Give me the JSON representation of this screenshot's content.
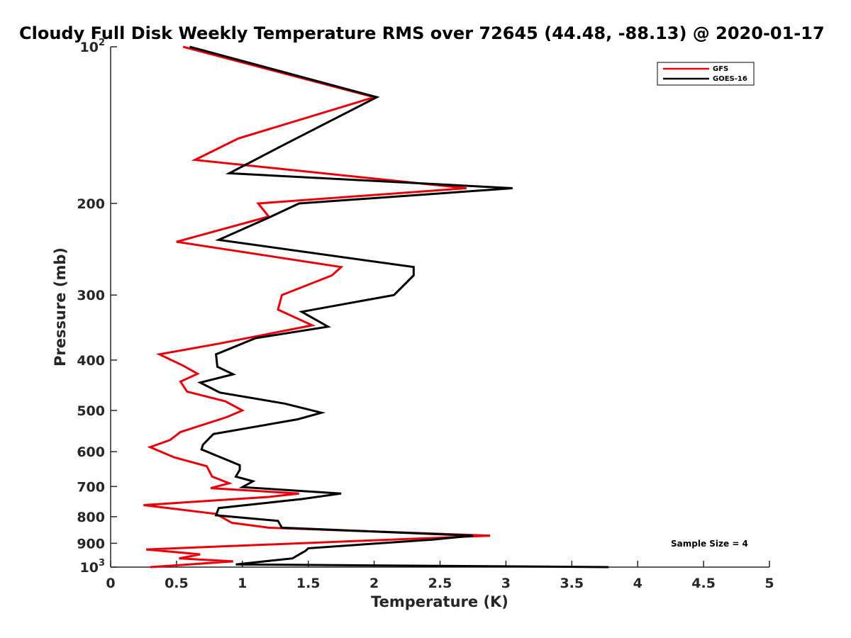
{
  "chart_data": {
    "type": "line",
    "title": "Cloudy Full Disk Weekly Temperature RMS over 72645 (44.48, -88.13) @ 2020-01-17",
    "xlabel": "Temperature (K)",
    "ylabel": "Pressure (mb)",
    "xlim": [
      0,
      5
    ],
    "ylim": [
      1000,
      100
    ],
    "y_scale": "log",
    "x_ticks": [
      "0",
      "0.5",
      "1",
      "1.5",
      "2",
      "2.5",
      "3",
      "3.5",
      "4",
      "4.5",
      "5"
    ],
    "y_ticks": [
      {
        "value": 100,
        "base": "10",
        "exp": "2"
      },
      {
        "value": 200,
        "label": "200"
      },
      {
        "value": 300,
        "label": "300"
      },
      {
        "value": 400,
        "label": "400"
      },
      {
        "value": 500,
        "label": "500"
      },
      {
        "value": 600,
        "label": "600"
      },
      {
        "value": 700,
        "label": "700"
      },
      {
        "value": 800,
        "label": "800"
      },
      {
        "value": 900,
        "label": "900"
      },
      {
        "value": 1000,
        "base": "10",
        "exp": "3"
      }
    ],
    "grid": false,
    "legend_position": "top-right",
    "series": [
      {
        "name": "GFS",
        "color": "#e8000b",
        "points": [
          [
            0.55,
            100
          ],
          [
            2.0,
            125
          ],
          [
            0.97,
            150
          ],
          [
            0.64,
            165
          ],
          [
            2.7,
            187
          ],
          [
            1.12,
            200
          ],
          [
            1.2,
            212
          ],
          [
            0.5,
            237
          ],
          [
            1.75,
            265
          ],
          [
            1.68,
            275
          ],
          [
            1.3,
            300
          ],
          [
            1.27,
            320
          ],
          [
            1.53,
            343
          ],
          [
            0.82,
            372
          ],
          [
            0.37,
            390
          ],
          [
            0.55,
            410
          ],
          [
            0.66,
            425
          ],
          [
            0.53,
            440
          ],
          [
            0.58,
            460
          ],
          [
            0.87,
            480
          ],
          [
            1.0,
            500
          ],
          [
            0.88,
            515
          ],
          [
            0.53,
            550
          ],
          [
            0.45,
            570
          ],
          [
            0.3,
            588
          ],
          [
            0.48,
            615
          ],
          [
            0.73,
            640
          ],
          [
            0.77,
            670
          ],
          [
            0.9,
            690
          ],
          [
            0.76,
            705
          ],
          [
            1.43,
            722
          ],
          [
            1.2,
            733
          ],
          [
            0.25,
            760
          ],
          [
            0.8,
            790
          ],
          [
            0.92,
            822
          ],
          [
            1.2,
            840
          ],
          [
            2.88,
            870
          ],
          [
            0.27,
            925
          ],
          [
            0.68,
            945
          ],
          [
            0.52,
            962
          ],
          [
            0.93,
            975
          ],
          [
            0.3,
            1000
          ]
        ]
      },
      {
        "name": "GOES-16",
        "color": "#000000",
        "points": [
          [
            0.6,
            100
          ],
          [
            2.02,
            125
          ],
          [
            1.3,
            155
          ],
          [
            0.9,
            175
          ],
          [
            3.05,
            187
          ],
          [
            1.43,
            200
          ],
          [
            1.2,
            213
          ],
          [
            0.82,
            235
          ],
          [
            2.3,
            265
          ],
          [
            2.3,
            275
          ],
          [
            2.15,
            300
          ],
          [
            1.45,
            323
          ],
          [
            1.65,
            345
          ],
          [
            1.1,
            363
          ],
          [
            0.8,
            390
          ],
          [
            0.81,
            412
          ],
          [
            0.93,
            426
          ],
          [
            0.68,
            442
          ],
          [
            0.83,
            462
          ],
          [
            1.32,
            485
          ],
          [
            1.6,
            505
          ],
          [
            1.42,
            520
          ],
          [
            0.78,
            555
          ],
          [
            0.7,
            582
          ],
          [
            0.69,
            594
          ],
          [
            0.98,
            637
          ],
          [
            0.98,
            650
          ],
          [
            0.95,
            670
          ],
          [
            1.08,
            684
          ],
          [
            1.0,
            702
          ],
          [
            1.75,
            722
          ],
          [
            1.45,
            740
          ],
          [
            0.82,
            770
          ],
          [
            0.8,
            795
          ],
          [
            1.27,
            815
          ],
          [
            1.3,
            840
          ],
          [
            2.75,
            870
          ],
          [
            2.45,
            885
          ],
          [
            1.5,
            920
          ],
          [
            1.48,
            930
          ],
          [
            1.38,
            962
          ],
          [
            0.95,
            988
          ],
          [
            3.78,
            1000
          ]
        ]
      }
    ],
    "annotation": "Sample Size = 4"
  }
}
